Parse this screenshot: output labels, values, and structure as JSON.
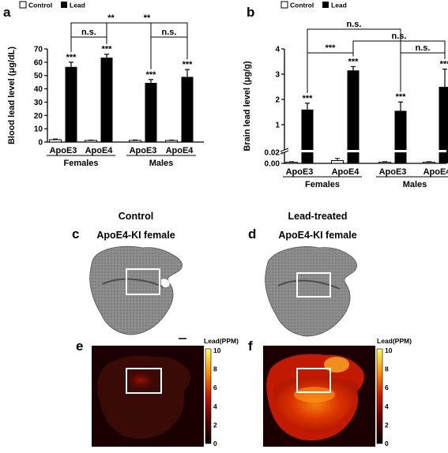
{
  "panels": {
    "a": {
      "letter": "a"
    },
    "b": {
      "letter": "b"
    },
    "c": {
      "letter": "c",
      "caption_line1": "Control",
      "caption_line2": "ApoE4-KI female"
    },
    "d": {
      "letter": "d",
      "caption_line1": "Lead-treated",
      "caption_line2": "ApoE4-KI female"
    },
    "e": {
      "letter": "e",
      "colorbar_title": "Lead(PPM)",
      "colorbar_ticks": [
        "10",
        "8",
        "6",
        "4",
        "2",
        "0"
      ]
    },
    "f": {
      "letter": "f",
      "colorbar_title": "Lead(PPM)",
      "colorbar_ticks": [
        "10",
        "8",
        "6",
        "4",
        "2",
        "0"
      ]
    }
  },
  "legend": {
    "control": "Control",
    "lead": "Lead"
  },
  "colors": {
    "control_fill": "#ffffff",
    "lead_fill": "#000000"
  },
  "chart_data": [
    {
      "id": "a",
      "type": "bar",
      "ylabel": "Blood lead level (μg/dL)",
      "ylim": [
        0,
        70
      ],
      "yticks": [
        "0",
        "10",
        "20",
        "30",
        "40",
        "50",
        "60",
        "70"
      ],
      "genotypes": [
        "ApoE3",
        "ApoE4",
        "ApoE3",
        "ApoE4"
      ],
      "groups": [
        "Females",
        "Males"
      ],
      "series": [
        {
          "name": "Control",
          "values": [
            1.8,
            1.2,
            1.2,
            1.2
          ],
          "errors": [
            0.5,
            0.3,
            0.4,
            0.3
          ]
        },
        {
          "name": "Lead",
          "values": [
            56.5,
            63.5,
            44.5,
            49
          ],
          "errors": [
            3.5,
            2.5,
            2.5,
            5.5
          ]
        }
      ],
      "lead_sig": [
        "***",
        "***",
        "***",
        "***"
      ],
      "brackets": [
        {
          "from": 0,
          "to": 2,
          "label": "**",
          "level": 2
        },
        {
          "from": 1,
          "to": 3,
          "label": "**",
          "level": 2
        },
        {
          "from": 0,
          "to": 1,
          "label": "n.s.",
          "level": 1
        },
        {
          "from": 2,
          "to": 3,
          "label": "n.s.",
          "level": 1
        }
      ]
    },
    {
      "id": "b",
      "type": "bar",
      "ylabel": "Brain lead level (μg/g)",
      "scale": "broken",
      "yticks_lower": [
        "0.00",
        "0.02"
      ],
      "yticks_upper": [
        "1",
        "2",
        "3",
        "4"
      ],
      "genotypes": [
        "ApoE3",
        "ApoE4",
        "ApoE3",
        "ApoE4"
      ],
      "groups": [
        "Females",
        "Males"
      ],
      "series": [
        {
          "name": "Control",
          "values": [
            0.002,
            0.005,
            0.002,
            0.002
          ],
          "errors": [
            0.001,
            0.004,
            0.001,
            0.001
          ]
        },
        {
          "name": "Lead",
          "values": [
            1.6,
            3.15,
            1.55,
            2.5
          ],
          "errors": [
            0.25,
            0.15,
            0.35,
            0.7
          ]
        }
      ],
      "lead_sig": [
        "***",
        "***",
        "***",
        "***"
      ],
      "brackets": [
        {
          "from": 0,
          "to": 2,
          "label": "n.s.",
          "level": 3
        },
        {
          "from": 1,
          "to": 3,
          "label": "n.s.",
          "level": 2
        },
        {
          "from": 0,
          "to": 1,
          "label": "***",
          "level": 1
        },
        {
          "from": 2,
          "to": 3,
          "label": "n.s.",
          "level": 1
        }
      ]
    }
  ]
}
